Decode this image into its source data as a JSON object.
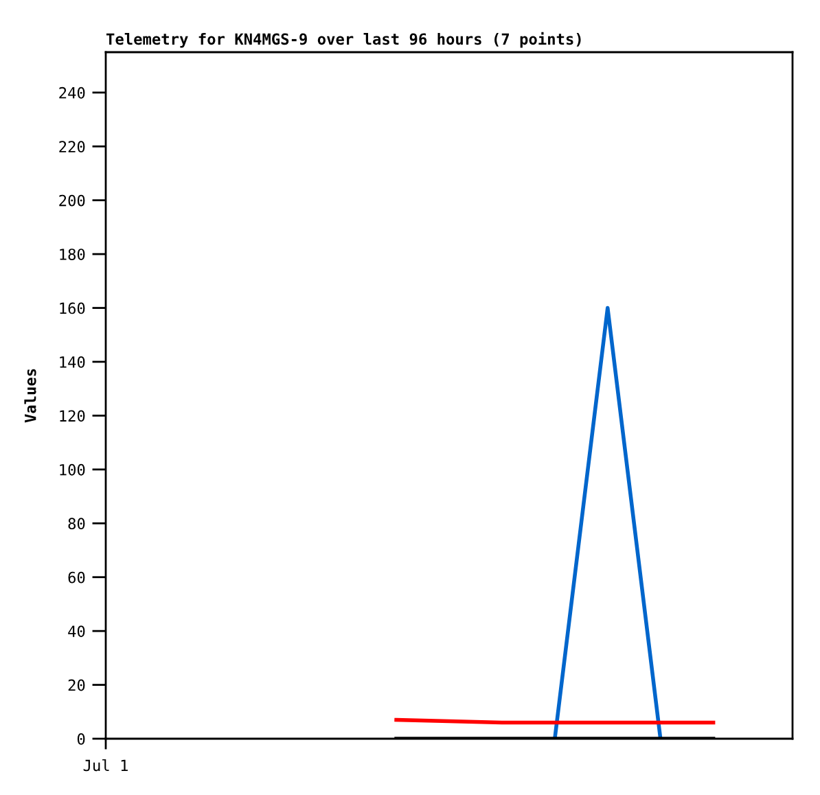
{
  "chart_data": {
    "type": "line",
    "title": "Telemetry for KN4MGS-9 over last 96 hours (7 points)",
    "ylabel": "Values",
    "categories": [
      null,
      null,
      null,
      null,
      null,
      null,
      null,
      null,
      null,
      null,
      null,
      null,
      null
    ],
    "series": [
      {
        "color": "#0066cc",
        "values": [
          null,
          null,
          null,
          null,
          null,
          null,
          null,
          null,
          0,
          160,
          0,
          null,
          null
        ]
      },
      {
        "color": "#ff0000",
        "values": [
          null,
          null,
          null,
          null,
          null,
          7,
          6.5,
          6,
          6,
          6,
          6,
          6,
          null
        ]
      },
      {
        "color": "#000000",
        "values": [
          null,
          null,
          null,
          null,
          null,
          0,
          0,
          0,
          0,
          0,
          0,
          0,
          null
        ]
      }
    ],
    "annotations": [
      "Jul 1"
    ],
    "ylim": [
      0,
      255
    ],
    "yticks": [
      0,
      20,
      40,
      60,
      80,
      100,
      120,
      140,
      160,
      180,
      200,
      220,
      240
    ],
    "marker": "none",
    "line_style": "solid"
  }
}
